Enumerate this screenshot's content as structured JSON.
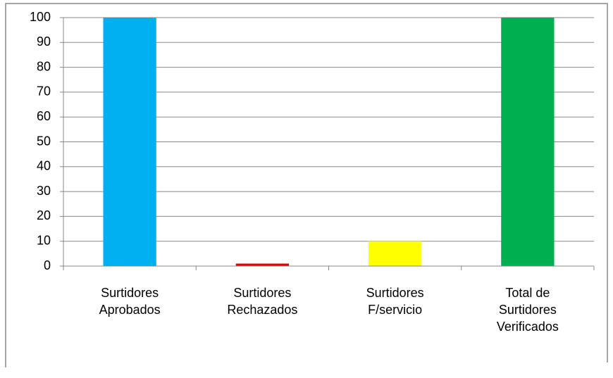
{
  "chart_data": {
    "type": "bar",
    "categories": [
      "Surtidores\nAprobados",
      "Surtidores\nRechazados",
      "Surtidores\nF/servicio",
      "Total de\nSurtidores\nVerificados"
    ],
    "values": [
      100,
      1,
      10,
      100
    ],
    "colors": [
      "#00b0f0",
      "#e00000",
      "#ffff00",
      "#00b050"
    ],
    "ylim": [
      0,
      100
    ],
    "yticks": [
      0,
      10,
      20,
      30,
      40,
      50,
      60,
      70,
      80,
      90,
      100
    ],
    "grid": true
  }
}
